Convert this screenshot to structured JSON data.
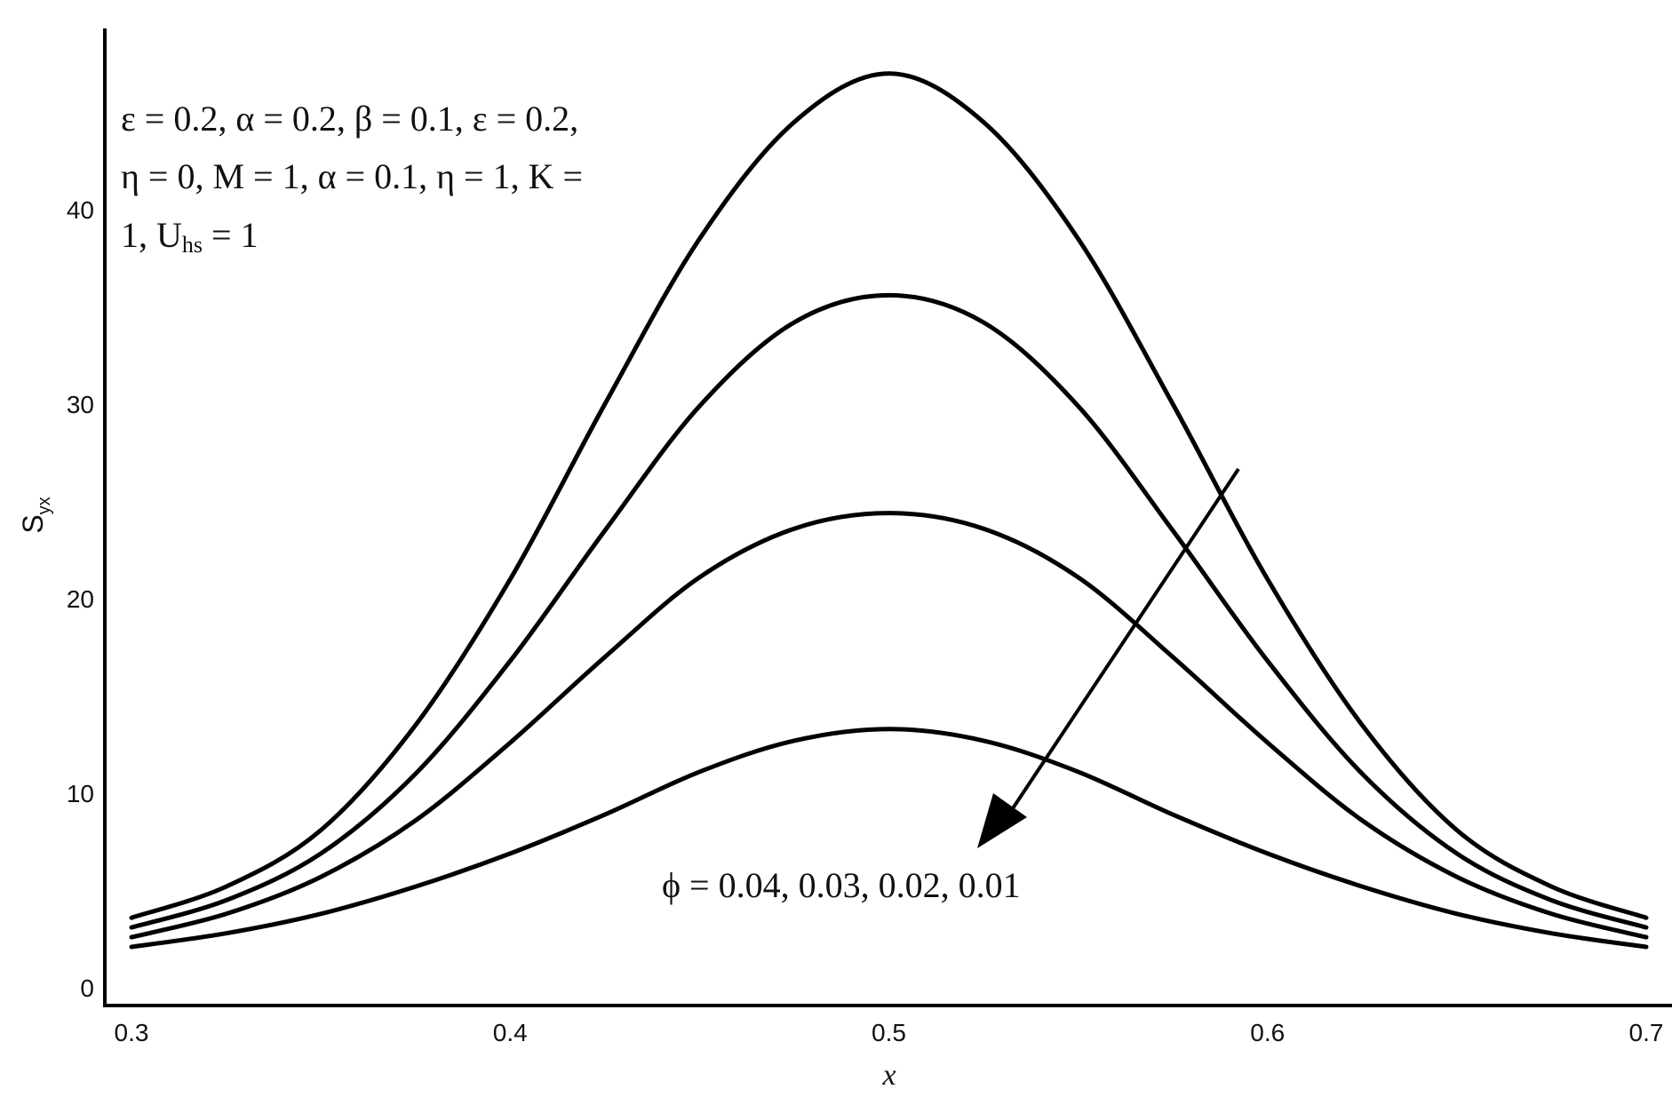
{
  "chart_data": {
    "type": "line",
    "title": "",
    "xlabel": "x",
    "ylabel": {
      "main": "S",
      "sub": "yx"
    },
    "xlim": [
      0.3,
      0.7
    ],
    "ylim": [
      0,
      50
    ],
    "xticks": [
      0.3,
      0.4,
      0.5,
      0.6,
      0.7
    ],
    "xtick_labels": [
      "0.3",
      "0.4",
      "0.5",
      "0.6",
      "0.7"
    ],
    "yticks": [
      0,
      10,
      20,
      30,
      40
    ],
    "ytick_labels": [
      "0",
      "10",
      "20",
      "30",
      "40"
    ],
    "grid": false,
    "legend": "none",
    "x": [
      0.3,
      0.325,
      0.35,
      0.375,
      0.4,
      0.425,
      0.45,
      0.475,
      0.5,
      0.525,
      0.55,
      0.575,
      0.6,
      0.625,
      0.65,
      0.675,
      0.7
    ],
    "series": [
      {
        "values": [
          3.6,
          5.2,
          8.1,
          13.5,
          21.0,
          30.0,
          38.5,
          44.5,
          47.0,
          44.5,
          38.5,
          30.0,
          21.0,
          13.5,
          8.1,
          5.2,
          3.6
        ]
      },
      {
        "values": [
          3.1,
          4.5,
          6.9,
          11.0,
          16.8,
          23.5,
          29.9,
          34.2,
          35.6,
          34.2,
          29.9,
          23.5,
          16.8,
          11.0,
          6.9,
          4.5,
          3.1
        ]
      },
      {
        "values": [
          2.6,
          3.8,
          5.7,
          8.6,
          12.6,
          17.0,
          21.1,
          23.6,
          24.4,
          23.6,
          21.1,
          17.0,
          12.6,
          8.6,
          5.7,
          3.8,
          2.6
        ]
      },
      {
        "values": [
          2.1,
          2.8,
          3.8,
          5.2,
          6.9,
          8.9,
          11.1,
          12.7,
          13.3,
          12.7,
          11.1,
          8.9,
          6.9,
          5.2,
          3.8,
          2.8,
          2.1
        ]
      }
    ],
    "annotations": {
      "parameters": [
        "ε = 0.2, α = 0.2, β = 0.1, ε = 0.2,",
        "η = 0, M = 1, α = 0.1, η = 1, K =",
        "1, U"
      ],
      "parameters_sub": "hs",
      "parameters_tail": " = 1",
      "phi_label": "ϕ =  0.04, 0.03, 0.02, 0.01"
    },
    "colors": {
      "line": "#000000"
    }
  }
}
